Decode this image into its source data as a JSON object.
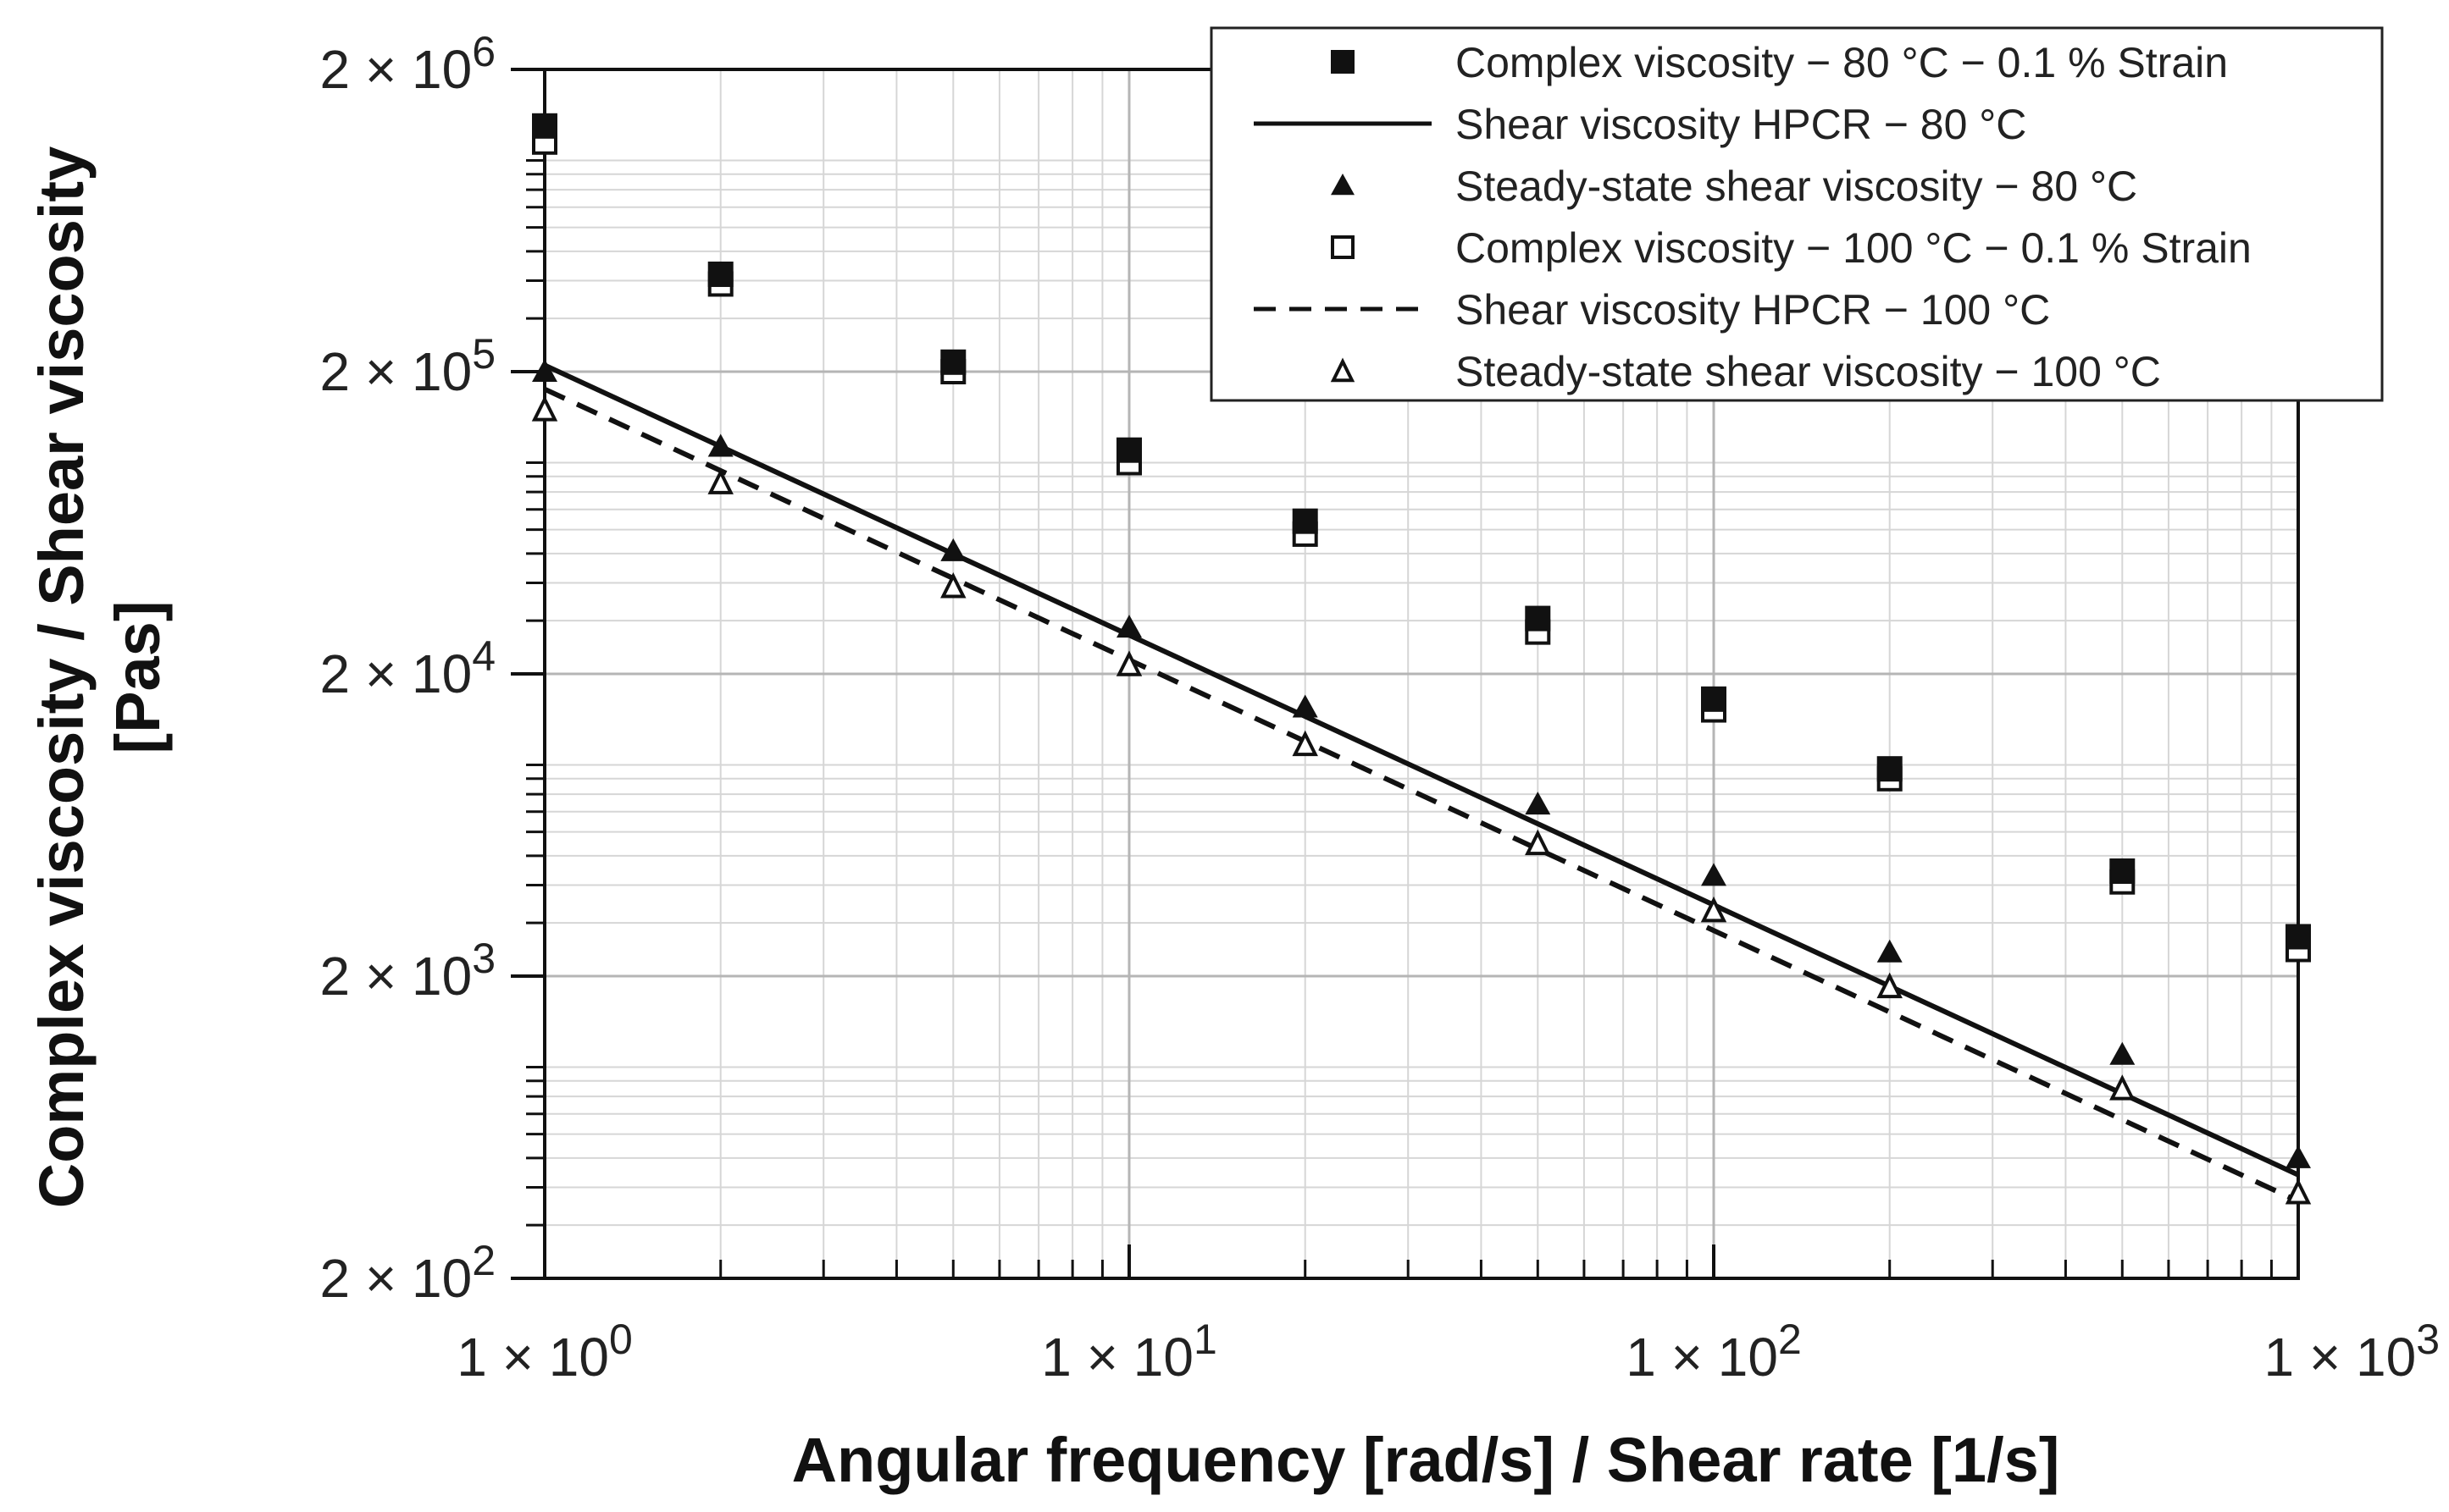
{
  "chart_data": {
    "type": "scatter",
    "title": "",
    "xlabel": "Angular frequency [rad/s] / Shear rate [1/s]",
    "ylabel_lines": [
      "Complex viscosity  / Shear viscosity",
      "[Pas]"
    ],
    "x_scale": "log",
    "y_scale": "log",
    "xlim": [
      1,
      1000
    ],
    "ylim": [
      200,
      2000000
    ],
    "grid": true,
    "legend_position": "top-right",
    "x_ticks": [
      {
        "value": 1,
        "label": "1 × 10",
        "exp": "0"
      },
      {
        "value": 10,
        "label": "1 × 10",
        "exp": "1"
      },
      {
        "value": 100,
        "label": "1 × 10",
        "exp": "2"
      },
      {
        "value": 1000,
        "label": "1 × 10",
        "exp": "3"
      }
    ],
    "y_ticks": [
      {
        "value": 200,
        "label": "2 × 10",
        "exp": "2"
      },
      {
        "value": 2000,
        "label": "2 × 10",
        "exp": "3"
      },
      {
        "value": 20000,
        "label": "2 × 10",
        "exp": "4"
      },
      {
        "value": 200000,
        "label": "2 × 10",
        "exp": "5"
      },
      {
        "value": 2000000,
        "label": "2 × 10",
        "exp": "6"
      }
    ],
    "series": [
      {
        "name": "Complex viscosity − 80 °C − 0.1 % Strain",
        "marker": "square-filled",
        "x": [
          1,
          2,
          5,
          10,
          20,
          50,
          100,
          200,
          500,
          1000
        ],
        "y": [
          1300000,
          420000,
          215000,
          110000,
          64000,
          30500,
          16500,
          9700,
          4450,
          2700
        ]
      },
      {
        "name": "Shear viscosity HPCR − 80 °C",
        "marker": "line-solid",
        "x": [
          1,
          1000
        ],
        "y": [
          210000,
          440
        ]
      },
      {
        "name": "Steady-state shear viscosity − 80 °C",
        "marker": "triangle-filled",
        "x": [
          1,
          2,
          5,
          10,
          20,
          50,
          100,
          200,
          500,
          1000
        ],
        "y": [
          200000,
          113000,
          51000,
          28500,
          15500,
          7400,
          4300,
          2400,
          1100,
          500
        ]
      },
      {
        "name": "Complex viscosity − 100 °C − 0.1 % Strain",
        "marker": "square-open",
        "x": [
          1,
          2,
          5,
          10,
          20,
          50,
          100,
          200,
          500,
          1000
        ],
        "y": [
          1150000,
          390000,
          200000,
          100000,
          58000,
          27500,
          15200,
          9000,
          4100,
          2450
        ]
      },
      {
        "name": "Shear viscosity HPCR − 100 °C",
        "marker": "line-dashed",
        "x": [
          1,
          1000
        ],
        "y": [
          175000,
          360
        ]
      },
      {
        "name": "Steady-state shear viscosity − 100 °C",
        "marker": "triangle-open",
        "x": [
          1,
          2,
          5,
          10,
          20,
          50,
          100,
          200,
          500,
          1000
        ],
        "y": [
          150000,
          86000,
          39000,
          21500,
          11700,
          5500,
          3300,
          1850,
          850,
          385
        ]
      }
    ]
  }
}
